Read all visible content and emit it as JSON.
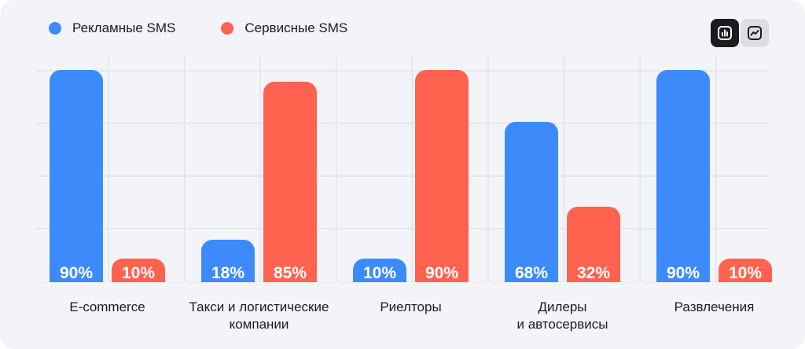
{
  "chart_data": {
    "type": "bar",
    "categories": [
      "E-commerce",
      "Такси и логистические\nкомпании",
      "Риелторы",
      "Дилеры\nи автосервисы",
      "Развлечения"
    ],
    "series": [
      {
        "name": "Рекламные SMS",
        "color": "#3d8bfa",
        "values": [
          90,
          18,
          10,
          68,
          90
        ],
        "labels": [
          "90%",
          "18%",
          "10%",
          "68%",
          "90%"
        ]
      },
      {
        "name": "Сервисные SMS",
        "color": "#ff6350",
        "values": [
          10,
          85,
          90,
          32,
          10
        ],
        "labels": [
          "10%",
          "85%",
          "90%",
          "32%",
          "10%"
        ]
      }
    ],
    "ylim": [
      0,
      100
    ],
    "grid": true,
    "legend": "top-left"
  },
  "toolbar": {
    "bar_view_icon": "bar-chart-icon",
    "line_view_icon": "line-chart-icon"
  }
}
